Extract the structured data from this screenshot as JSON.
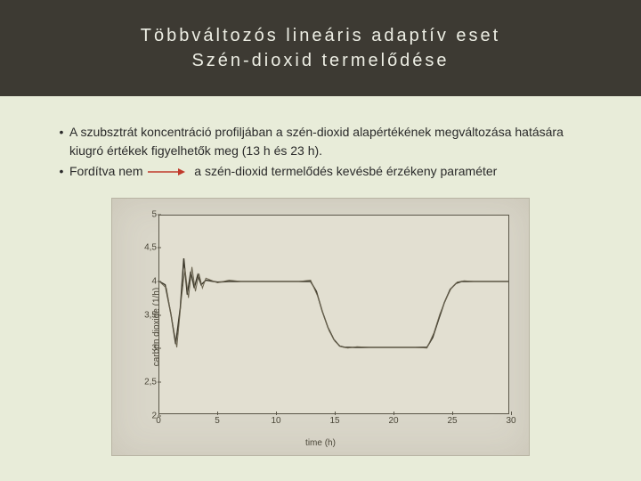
{
  "title": {
    "line1": "Többváltozós lineáris adaptív eset",
    "line2": "Szén-dioxid termelődése"
  },
  "bullets": {
    "b1": "A szubsztrát koncentráció profiljában a szén-dioxid alapértékének megváltozása hatására kiugró értékek figyelhetők meg (13 h és 23 h).",
    "b2_before": "Fordítva nem",
    "b2_after": "a szén-dioxid termelődés kevésbé érzékeny paraméter",
    "arrow_color": "#c0392b"
  },
  "chart": {
    "type": "line",
    "background_color": "#d9d6c9",
    "plot_background": "#e2dfd1",
    "axis_color": "#5a5648",
    "text_color": "#4a4638",
    "xlabel": "time (h)",
    "ylabel": "carbon dioxide (1/h)",
    "xlim": [
      0,
      30
    ],
    "ylim": [
      2,
      5
    ],
    "yticks": [
      2,
      2.5,
      3,
      3.5,
      4,
      4.5,
      5
    ],
    "xticks": [
      0,
      5,
      10,
      15,
      20,
      25,
      30
    ],
    "series": [
      {
        "name": "trace1",
        "color": "#3a3628",
        "width": 1.4,
        "points": [
          [
            0,
            4.0
          ],
          [
            0.5,
            3.95
          ],
          [
            1,
            3.5
          ],
          [
            1.4,
            3.05
          ],
          [
            1.8,
            3.6
          ],
          [
            2.1,
            4.35
          ],
          [
            2.4,
            3.8
          ],
          [
            2.7,
            4.15
          ],
          [
            3.0,
            3.9
          ],
          [
            3.3,
            4.1
          ],
          [
            3.6,
            3.95
          ],
          [
            4,
            4.02
          ],
          [
            5,
            3.99
          ],
          [
            6,
            4.0
          ],
          [
            7,
            4.0
          ],
          [
            8,
            4.0
          ],
          [
            9,
            4.0
          ],
          [
            10,
            4.0
          ],
          [
            11,
            4.0
          ],
          [
            12,
            4.0
          ],
          [
            13,
            4.0
          ],
          [
            13.5,
            3.85
          ],
          [
            14,
            3.55
          ],
          [
            14.5,
            3.3
          ],
          [
            15,
            3.12
          ],
          [
            15.5,
            3.02
          ],
          [
            16,
            3.0
          ],
          [
            17,
            3.0
          ],
          [
            18,
            3.0
          ],
          [
            19,
            3.0
          ],
          [
            20,
            3.0
          ],
          [
            21,
            3.0
          ],
          [
            22,
            3.0
          ],
          [
            23,
            3.0
          ],
          [
            23.5,
            3.15
          ],
          [
            24,
            3.42
          ],
          [
            24.5,
            3.68
          ],
          [
            25,
            3.88
          ],
          [
            25.5,
            3.97
          ],
          [
            26,
            4.0
          ],
          [
            27,
            4.0
          ],
          [
            28,
            4.0
          ],
          [
            29,
            4.0
          ],
          [
            30,
            4.0
          ]
        ]
      },
      {
        "name": "trace2",
        "color": "#6b6450",
        "width": 1.0,
        "points": [
          [
            0,
            4.0
          ],
          [
            0.6,
            3.9
          ],
          [
            1.1,
            3.4
          ],
          [
            1.5,
            3.0
          ],
          [
            1.9,
            3.75
          ],
          [
            2.2,
            4.2
          ],
          [
            2.5,
            3.75
          ],
          [
            2.8,
            4.22
          ],
          [
            3.1,
            3.85
          ],
          [
            3.4,
            4.12
          ],
          [
            3.7,
            3.9
          ],
          [
            4,
            4.05
          ],
          [
            5,
            3.98
          ],
          [
            6,
            4.02
          ],
          [
            7,
            4.0
          ],
          [
            8,
            4.0
          ],
          [
            9,
            4.0
          ],
          [
            10,
            4.0
          ],
          [
            11,
            4.0
          ],
          [
            12,
            4.0
          ],
          [
            13,
            4.02
          ],
          [
            13.6,
            3.78
          ],
          [
            14.1,
            3.5
          ],
          [
            14.6,
            3.25
          ],
          [
            15.1,
            3.09
          ],
          [
            15.6,
            3.01
          ],
          [
            16.2,
            2.99
          ],
          [
            17,
            3.01
          ],
          [
            18,
            3.0
          ],
          [
            19,
            3.0
          ],
          [
            20,
            3.0
          ],
          [
            21,
            3.0
          ],
          [
            22,
            3.0
          ],
          [
            23,
            2.99
          ],
          [
            23.6,
            3.22
          ],
          [
            24.1,
            3.5
          ],
          [
            24.6,
            3.72
          ],
          [
            25.1,
            3.9
          ],
          [
            25.6,
            3.99
          ],
          [
            26.2,
            4.01
          ],
          [
            27,
            4.0
          ],
          [
            28,
            4.0
          ],
          [
            29,
            4.0
          ],
          [
            30,
            4.0
          ]
        ]
      }
    ]
  }
}
